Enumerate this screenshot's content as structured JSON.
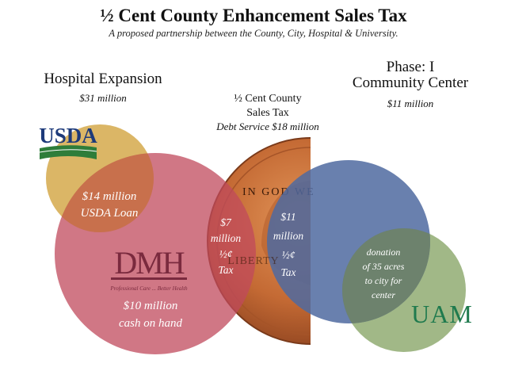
{
  "header": {
    "title": "½ Cent County Enhancement Sales Tax",
    "subtitle": "A proposed partnership between the County, City, Hospital & University."
  },
  "hospital": {
    "heading": "Hospital Expansion",
    "amount": "$31 million",
    "usda_loan_line1": "$14 million",
    "usda_loan_line2": "USDA Loan",
    "cash_line1": "$10 million",
    "cash_line2": "cash on hand",
    "tax_line1": "$7",
    "tax_line2": "million",
    "tax_line3": "½¢",
    "tax_line4": "Tax",
    "logo_text": "DMH",
    "logo_tagline": "Professional Care ... Better Health",
    "color": "#c04a5c"
  },
  "penny": {
    "heading_line1": "½ Cent County",
    "heading_line2": "Sales Tax",
    "debt_service": "Debt Service $18 million",
    "motto": "IN GOD WE",
    "liberty": "LIBERTY",
    "color": "#c9733d"
  },
  "community_center": {
    "heading_line1": "Phase: I",
    "heading_line2": "Community Center",
    "amount": "$11 million",
    "tax_line1": "$11",
    "tax_line2": "million",
    "tax_line3": "½¢",
    "tax_line4": "Tax",
    "color": "#4f6aa0"
  },
  "uam": {
    "donation_line1": "donation",
    "donation_line2": "of 35 acres",
    "donation_line3": "to city for",
    "donation_line4": "center",
    "logo_text": "UAM",
    "color": "#97b07a"
  },
  "usda": {
    "logo_text": "USDA",
    "color": "#d7ae55"
  }
}
